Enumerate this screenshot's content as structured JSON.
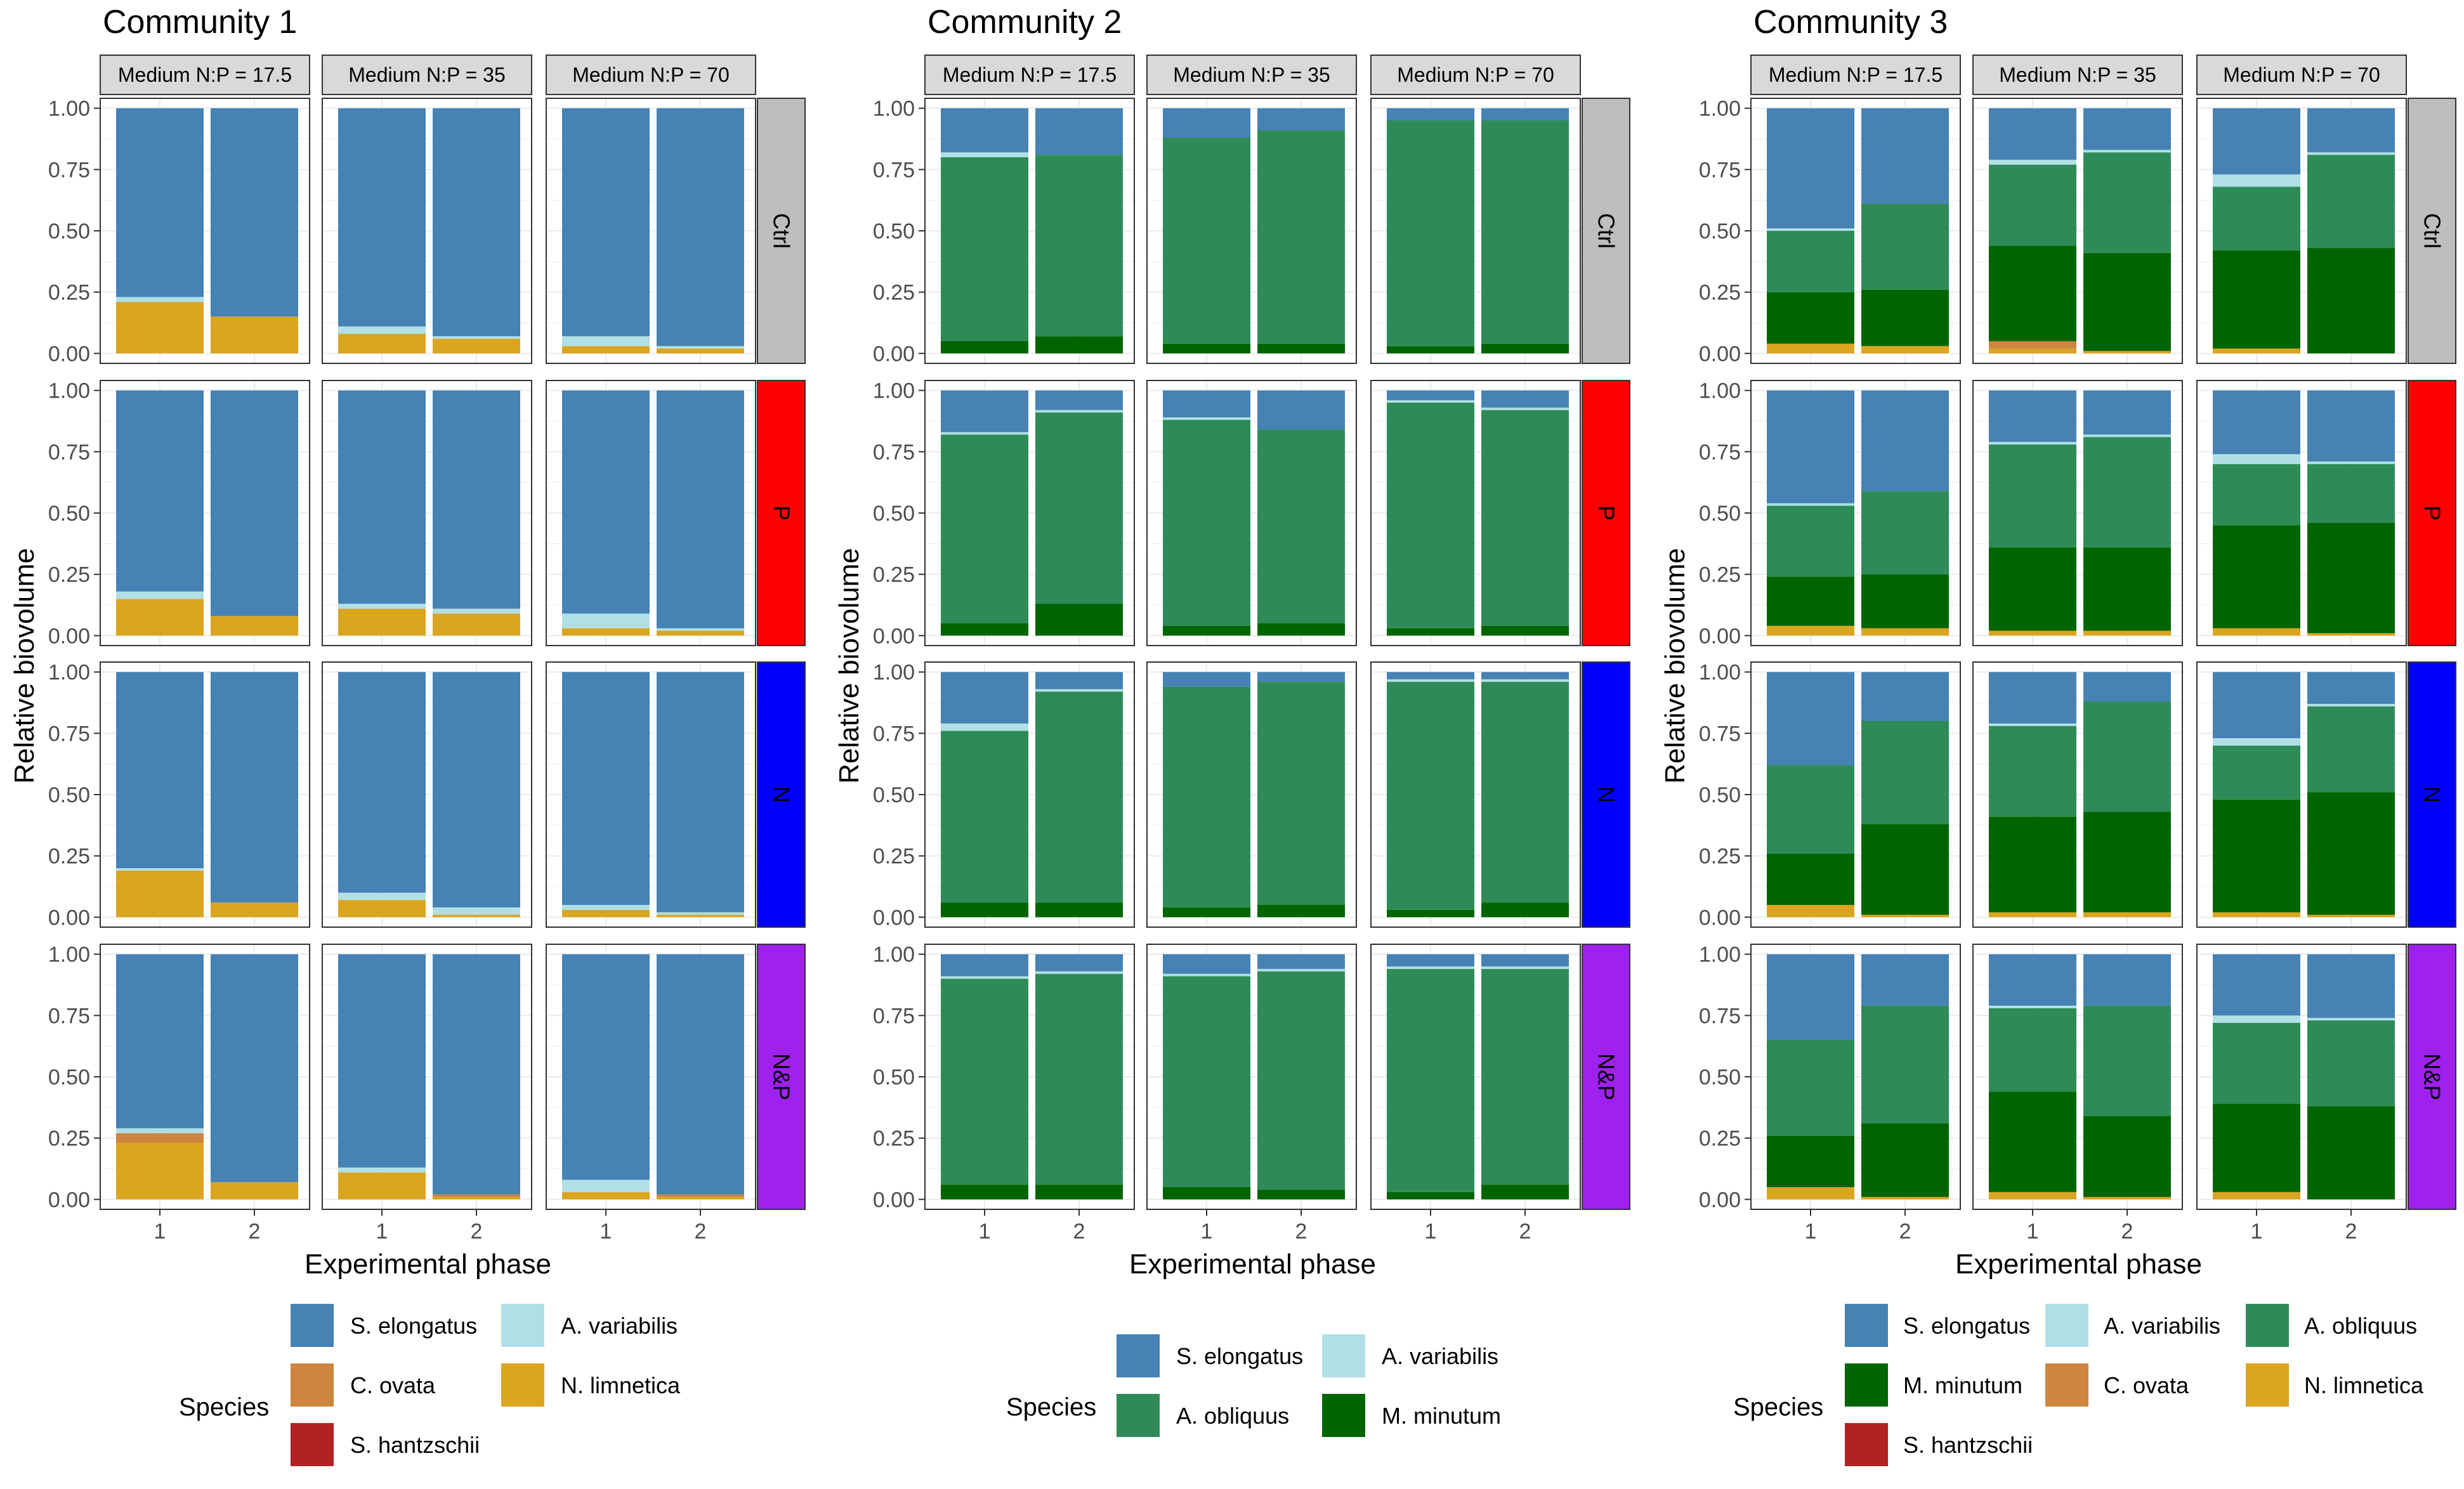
{
  "figure": {
    "y_axis_label": "Relative biovolume",
    "x_axis_label": "Experimental phase",
    "legend_title": "Species",
    "y_ticks": [
      "0.00",
      "0.25",
      "0.50",
      "0.75",
      "1.00"
    ],
    "x_ticks": [
      "1",
      "2"
    ],
    "media": [
      "Medium N:P = 17.5",
      "Medium N:P = 35",
      "Medium N:P = 70"
    ],
    "treatments": [
      "Ctrl",
      "P",
      "N",
      "N&P"
    ]
  },
  "colors": {
    "S. elongatus": "#4682b4",
    "A. variabilis": "#b0e0e6",
    "A. obliquus": "#2e8b57",
    "M. minutum": "#006400",
    "C. ovata": "#cd853f",
    "N. limnetica": "#daa520",
    "S. hantzschii": "#b22222",
    "Ctrl": "#bebebe",
    "P": "#ff0000",
    "N": "#0000ff",
    "N&P": "#a020f0"
  },
  "chart_data": [
    {
      "type": "bar",
      "stacked": true,
      "title": "Community 1",
      "xlabel": "Experimental phase",
      "ylabel": "Relative biovolume",
      "ylim": [
        0,
        1
      ],
      "species": [
        "S. elongatus",
        "A. variabilis",
        "C. ovata",
        "N. limnetica",
        "S. hantzschii"
      ],
      "legend_items": [
        "S. elongatus",
        "A. variabilis",
        "C. ovata",
        "N. limnetica",
        "S. hantzschii"
      ],
      "stack_order": [
        "N. limnetica",
        "C. ovata",
        "S. hantzschii",
        "A. variabilis",
        "S. elongatus"
      ],
      "panels": {
        "Ctrl": [
          [
            {
              "N. limnetica": 0.21,
              "A. variabilis": 0.02,
              "S. elongatus": 0.77
            },
            {
              "N. limnetica": 0.15,
              "S. elongatus": 0.85
            }
          ],
          [
            {
              "N. limnetica": 0.08,
              "A. variabilis": 0.03,
              "S. elongatus": 0.89
            },
            {
              "N. limnetica": 0.06,
              "A. variabilis": 0.01,
              "S. elongatus": 0.93
            }
          ],
          [
            {
              "N. limnetica": 0.03,
              "A. variabilis": 0.04,
              "S. elongatus": 0.93
            },
            {
              "N. limnetica": 0.02,
              "A. variabilis": 0.01,
              "S. elongatus": 0.97
            }
          ]
        ],
        "P": [
          [
            {
              "N. limnetica": 0.15,
              "A. variabilis": 0.03,
              "S. elongatus": 0.82
            },
            {
              "N. limnetica": 0.08,
              "S. elongatus": 0.92
            }
          ],
          [
            {
              "N. limnetica": 0.11,
              "A. variabilis": 0.02,
              "S. elongatus": 0.87
            },
            {
              "N. limnetica": 0.09,
              "A. variabilis": 0.02,
              "S. elongatus": 0.89
            }
          ],
          [
            {
              "N. limnetica": 0.03,
              "A. variabilis": 0.06,
              "S. elongatus": 0.91
            },
            {
              "N. limnetica": 0.02,
              "A. variabilis": 0.01,
              "S. elongatus": 0.97
            }
          ]
        ],
        "N": [
          [
            {
              "N. limnetica": 0.19,
              "A. variabilis": 0.01,
              "S. elongatus": 0.8
            },
            {
              "N. limnetica": 0.06,
              "S. elongatus": 0.94
            }
          ],
          [
            {
              "N. limnetica": 0.07,
              "A. variabilis": 0.03,
              "S. elongatus": 0.9
            },
            {
              "N. limnetica": 0.01,
              "A. variabilis": 0.03,
              "S. elongatus": 0.96
            }
          ],
          [
            {
              "N. limnetica": 0.03,
              "A. variabilis": 0.02,
              "S. elongatus": 0.95
            },
            {
              "N. limnetica": 0.01,
              "A. variabilis": 0.01,
              "S. elongatus": 0.98
            }
          ]
        ],
        "N&P": [
          [
            {
              "N. limnetica": 0.23,
              "C. ovata": 0.04,
              "A. variabilis": 0.02,
              "S. elongatus": 0.71
            },
            {
              "N. limnetica": 0.07,
              "S. elongatus": 0.93
            }
          ],
          [
            {
              "N. limnetica": 0.11,
              "A. variabilis": 0.02,
              "S. elongatus": 0.87
            },
            {
              "N. limnetica": 0.01,
              "C. ovata": 0.01,
              "S. elongatus": 0.98
            }
          ],
          [
            {
              "N. limnetica": 0.03,
              "A. variabilis": 0.05,
              "S. elongatus": 0.92
            },
            {
              "N. limnetica": 0.01,
              "C. ovata": 0.01,
              "S. elongatus": 0.98
            }
          ]
        ]
      }
    },
    {
      "type": "bar",
      "stacked": true,
      "title": "Community 2",
      "xlabel": "Experimental phase",
      "ylabel": "Relative biovolume",
      "ylim": [
        0,
        1
      ],
      "species": [
        "S. elongatus",
        "A. variabilis",
        "A. obliquus",
        "M. minutum"
      ],
      "legend_items": [
        "S. elongatus",
        "A. variabilis",
        "A. obliquus",
        "M. minutum"
      ],
      "stack_order": [
        "M. minutum",
        "A. obliquus",
        "A. variabilis",
        "S. elongatus"
      ],
      "panels": {
        "Ctrl": [
          [
            {
              "M. minutum": 0.05,
              "A. obliquus": 0.75,
              "A. variabilis": 0.02,
              "S. elongatus": 0.18
            },
            {
              "M. minutum": 0.07,
              "A. obliquus": 0.74,
              "S. elongatus": 0.19
            }
          ],
          [
            {
              "M. minutum": 0.04,
              "A. obliquus": 0.84,
              "S. elongatus": 0.12
            },
            {
              "M. minutum": 0.04,
              "A. obliquus": 0.87,
              "S. elongatus": 0.09
            }
          ],
          [
            {
              "M. minutum": 0.03,
              "A. obliquus": 0.92,
              "S. elongatus": 0.05
            },
            {
              "M. minutum": 0.04,
              "A. obliquus": 0.91,
              "S. elongatus": 0.05
            }
          ]
        ],
        "P": [
          [
            {
              "M. minutum": 0.05,
              "A. obliquus": 0.77,
              "A. variabilis": 0.01,
              "S. elongatus": 0.17
            },
            {
              "M. minutum": 0.13,
              "A. obliquus": 0.78,
              "A. variabilis": 0.01,
              "S. elongatus": 0.08
            }
          ],
          [
            {
              "M. minutum": 0.04,
              "A. obliquus": 0.84,
              "A. variabilis": 0.01,
              "S. elongatus": 0.11
            },
            {
              "M. minutum": 0.05,
              "A. obliquus": 0.79,
              "S. elongatus": 0.16
            }
          ],
          [
            {
              "M. minutum": 0.03,
              "A. obliquus": 0.92,
              "A. variabilis": 0.01,
              "S. elongatus": 0.04
            },
            {
              "M. minutum": 0.04,
              "A. obliquus": 0.88,
              "A. variabilis": 0.01,
              "S. elongatus": 0.07
            }
          ]
        ],
        "N": [
          [
            {
              "M. minutum": 0.06,
              "A. obliquus": 0.7,
              "A. variabilis": 0.03,
              "S. elongatus": 0.21
            },
            {
              "M. minutum": 0.06,
              "A. obliquus": 0.86,
              "A. variabilis": 0.01,
              "S. elongatus": 0.07
            }
          ],
          [
            {
              "M. minutum": 0.04,
              "A. obliquus": 0.9,
              "S. elongatus": 0.06
            },
            {
              "M. minutum": 0.05,
              "A. obliquus": 0.91,
              "S. elongatus": 0.04
            }
          ],
          [
            {
              "M. minutum": 0.03,
              "A. obliquus": 0.93,
              "A. variabilis": 0.01,
              "S. elongatus": 0.03
            },
            {
              "M. minutum": 0.06,
              "A. obliquus": 0.9,
              "A. variabilis": 0.01,
              "S. elongatus": 0.03
            }
          ]
        ],
        "N&P": [
          [
            {
              "M. minutum": 0.06,
              "A. obliquus": 0.84,
              "A. variabilis": 0.01,
              "S. elongatus": 0.09
            },
            {
              "M. minutum": 0.06,
              "A. obliquus": 0.86,
              "A. variabilis": 0.01,
              "S. elongatus": 0.07
            }
          ],
          [
            {
              "M. minutum": 0.05,
              "A. obliquus": 0.86,
              "A. variabilis": 0.01,
              "S. elongatus": 0.08
            },
            {
              "M. minutum": 0.04,
              "A. obliquus": 0.89,
              "A. variabilis": 0.01,
              "S. elongatus": 0.06
            }
          ],
          [
            {
              "M. minutum": 0.03,
              "A. obliquus": 0.91,
              "A. variabilis": 0.01,
              "S. elongatus": 0.05
            },
            {
              "M. minutum": 0.06,
              "A. obliquus": 0.88,
              "A. variabilis": 0.01,
              "S. elongatus": 0.05
            }
          ]
        ]
      }
    },
    {
      "type": "bar",
      "stacked": true,
      "title": "Community 3",
      "xlabel": "Experimental phase",
      "ylabel": "Relative biovolume",
      "ylim": [
        0,
        1
      ],
      "species": [
        "S. elongatus",
        "A. variabilis",
        "A. obliquus",
        "M. minutum",
        "C. ovata",
        "N. limnetica",
        "S. hantzschii"
      ],
      "legend_items": [
        "S. elongatus",
        "A. variabilis",
        "A. obliquus",
        "M. minutum",
        "C. ovata",
        "N. limnetica",
        "S. hantzschii"
      ],
      "stack_order": [
        "N. limnetica",
        "C. ovata",
        "S. hantzschii",
        "M. minutum",
        "A. obliquus",
        "A. variabilis",
        "S. elongatus"
      ],
      "panels": {
        "Ctrl": [
          [
            {
              "N. limnetica": 0.04,
              "M. minutum": 0.21,
              "A. obliquus": 0.25,
              "A. variabilis": 0.01,
              "S. elongatus": 0.49
            },
            {
              "N. limnetica": 0.03,
              "M. minutum": 0.23,
              "A. obliquus": 0.35,
              "S. elongatus": 0.39
            }
          ],
          [
            {
              "N. limnetica": 0.02,
              "C. ovata": 0.03,
              "M. minutum": 0.39,
              "A. obliquus": 0.33,
              "A. variabilis": 0.02,
              "S. elongatus": 0.21
            },
            {
              "N. limnetica": 0.01,
              "M. minutum": 0.4,
              "A. obliquus": 0.41,
              "A. variabilis": 0.01,
              "S. elongatus": 0.17
            }
          ],
          [
            {
              "N. limnetica": 0.02,
              "M. minutum": 0.4,
              "A. obliquus": 0.26,
              "A. variabilis": 0.05,
              "S. elongatus": 0.27
            },
            {
              "M. minutum": 0.43,
              "A. obliquus": 0.38,
              "A. variabilis": 0.01,
              "S. elongatus": 0.18
            }
          ]
        ],
        "P": [
          [
            {
              "N. limnetica": 0.04,
              "M. minutum": 0.2,
              "A. obliquus": 0.29,
              "A. variabilis": 0.01,
              "S. elongatus": 0.46
            },
            {
              "N. limnetica": 0.03,
              "M. minutum": 0.22,
              "A. obliquus": 0.34,
              "S. elongatus": 0.41
            }
          ],
          [
            {
              "N. limnetica": 0.02,
              "M. minutum": 0.34,
              "A. obliquus": 0.42,
              "A. variabilis": 0.01,
              "S. elongatus": 0.21
            },
            {
              "N. limnetica": 0.02,
              "M. minutum": 0.34,
              "A. obliquus": 0.45,
              "A. variabilis": 0.01,
              "S. elongatus": 0.18
            }
          ],
          [
            {
              "N. limnetica": 0.03,
              "M. minutum": 0.42,
              "A. obliquus": 0.25,
              "A. variabilis": 0.04,
              "S. elongatus": 0.26
            },
            {
              "N. limnetica": 0.01,
              "M. minutum": 0.45,
              "A. obliquus": 0.24,
              "A. variabilis": 0.01,
              "S. elongatus": 0.29
            }
          ]
        ],
        "N": [
          [
            {
              "N. limnetica": 0.05,
              "M. minutum": 0.21,
              "A. obliquus": 0.36,
              "S. elongatus": 0.38
            },
            {
              "N. limnetica": 0.01,
              "M. minutum": 0.37,
              "A. obliquus": 0.42,
              "S. elongatus": 0.2
            }
          ],
          [
            {
              "N. limnetica": 0.02,
              "M. minutum": 0.39,
              "A. obliquus": 0.37,
              "A. variabilis": 0.01,
              "S. elongatus": 0.21
            },
            {
              "N. limnetica": 0.02,
              "M. minutum": 0.41,
              "A. obliquus": 0.45,
              "S. elongatus": 0.12
            }
          ],
          [
            {
              "N. limnetica": 0.02,
              "M. minutum": 0.46,
              "A. obliquus": 0.22,
              "A. variabilis": 0.03,
              "S. elongatus": 0.27
            },
            {
              "N. limnetica": 0.01,
              "M. minutum": 0.5,
              "A. obliquus": 0.35,
              "A. variabilis": 0.01,
              "S. elongatus": 0.13
            }
          ]
        ],
        "N&P": [
          [
            {
              "N. limnetica": 0.05,
              "M. minutum": 0.21,
              "A. obliquus": 0.39,
              "S. elongatus": 0.35
            },
            {
              "N. limnetica": 0.01,
              "M. minutum": 0.3,
              "A. obliquus": 0.48,
              "S. elongatus": 0.21
            }
          ],
          [
            {
              "N. limnetica": 0.03,
              "M. minutum": 0.41,
              "A. obliquus": 0.34,
              "A. variabilis": 0.01,
              "S. elongatus": 0.21
            },
            {
              "N. limnetica": 0.01,
              "M. minutum": 0.33,
              "A. obliquus": 0.45,
              "S. elongatus": 0.21
            }
          ],
          [
            {
              "N. limnetica": 0.03,
              "M. minutum": 0.36,
              "A. obliquus": 0.33,
              "A. variabilis": 0.03,
              "S. elongatus": 0.25
            },
            {
              "M. minutum": 0.38,
              "A. obliquus": 0.35,
              "A. variabilis": 0.01,
              "S. elongatus": 0.26
            }
          ]
        ]
      }
    }
  ]
}
